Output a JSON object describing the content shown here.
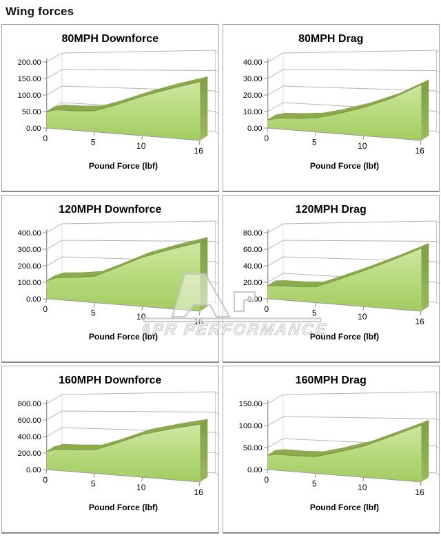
{
  "page": {
    "title": "Wing forces"
  },
  "watermark": {
    "text": "APR PERFORMANCE"
  },
  "style": {
    "area_fill_top": "#cfe8a2",
    "area_fill_mid": "#b7da7d",
    "area_fill_bottom": "#a3cb62",
    "area_ribbon": "#8cab4d",
    "area_edge": "#7d9a42",
    "side_dark": "#7f9e45",
    "side_light": "#99ba59",
    "grid_color": "#b3b3b3",
    "axis_color": "#8c8c8c",
    "border_color": "#a3a3a3"
  },
  "chart_data": [
    {
      "type": "area",
      "title": "80MPH Downforce",
      "xlabel": "Pound Force (lbf)",
      "x": [
        0,
        1,
        3,
        5,
        7,
        10,
        13,
        16
      ],
      "values": [
        50,
        57,
        57,
        60,
        77,
        105,
        127,
        145
      ],
      "ymax": 200,
      "ylim": [
        0,
        200
      ],
      "y_ticks": [
        0,
        50,
        100,
        150,
        200
      ],
      "y_tick_labels": [
        "0.00",
        "50.00",
        "100.00",
        "150.00",
        "200.00"
      ],
      "x_ticks": [
        0,
        5,
        10,
        16
      ],
      "x_tick_labels": [
        "0",
        "5",
        "10",
        "16"
      ]
    },
    {
      "type": "area",
      "title": "80MPH Drag",
      "xlabel": "Pound Force (lbf)",
      "x": [
        0,
        1,
        3,
        5,
        7,
        10,
        13,
        16
      ],
      "values": [
        5,
        6.5,
        7,
        8,
        10.5,
        15,
        20.5,
        27.5
      ],
      "ymax": 40,
      "ylim": [
        0,
        40
      ],
      "y_ticks": [
        0,
        10,
        20,
        30,
        40
      ],
      "y_tick_labels": [
        "0.00",
        "10.00",
        "20.00",
        "30.00",
        "40.00"
      ],
      "x_ticks": [
        0,
        5,
        10,
        16
      ],
      "x_tick_labels": [
        "0",
        "5",
        "10",
        "16"
      ]
    },
    {
      "type": "area",
      "title": "120MPH Downforce",
      "xlabel": "Pound Force (lbf)",
      "x": [
        0,
        1,
        3,
        5,
        7,
        10,
        13,
        16
      ],
      "values": [
        110,
        132,
        138,
        150,
        195,
        262,
        305,
        340
      ],
      "ymax": 400,
      "ylim": [
        0,
        400
      ],
      "y_ticks": [
        0,
        100,
        200,
        300,
        400
      ],
      "y_tick_labels": [
        "0.00",
        "100.00",
        "200.00",
        "300.00",
        "400.00"
      ],
      "x_ticks": [
        0,
        5,
        10,
        16
      ],
      "x_tick_labels": [
        "0",
        "5",
        "10",
        "16"
      ]
    },
    {
      "type": "area",
      "title": "120MPH Drag",
      "xlabel": "Pound Force (lbf)",
      "x": [
        0,
        1,
        3,
        5,
        7,
        10,
        13,
        16
      ],
      "values": [
        16,
        17,
        17,
        18,
        26,
        38,
        50,
        62
      ],
      "ymax": 80,
      "ylim": [
        0,
        80
      ],
      "y_ticks": [
        0,
        20,
        40,
        60,
        80
      ],
      "y_tick_labels": [
        "0.00",
        "20.00",
        "40.00",
        "60.00",
        "80.00"
      ],
      "x_ticks": [
        0,
        5,
        10,
        16
      ],
      "x_tick_labels": [
        "0",
        "5",
        "10",
        "16"
      ]
    },
    {
      "type": "area",
      "title": "160MPH Downforce",
      "xlabel": "Pound Force (lbf)",
      "x": [
        0,
        1,
        3,
        5,
        7,
        10,
        13,
        16
      ],
      "values": [
        220,
        252,
        258,
        268,
        340,
        455,
        520,
        570
      ],
      "ymax": 800,
      "ylim": [
        0,
        800
      ],
      "y_ticks": [
        0,
        200,
        400,
        600,
        800
      ],
      "y_tick_labels": [
        "0.00",
        "200.00",
        "400.00",
        "600.00",
        "800.00"
      ],
      "x_ticks": [
        0,
        5,
        10,
        16
      ],
      "x_tick_labels": [
        "0",
        "5",
        "10",
        "16"
      ]
    },
    {
      "type": "area",
      "title": "160MPH Drag",
      "xlabel": "Pound Force (lbf)",
      "x": [
        0,
        1,
        3,
        5,
        7,
        10,
        13,
        16
      ],
      "values": [
        33,
        36,
        35,
        36,
        46,
        62,
        84,
        105
      ],
      "ymax": 150,
      "ylim": [
        0,
        150
      ],
      "y_ticks": [
        0,
        50,
        100,
        150
      ],
      "y_tick_labels": [
        "0.00",
        "50.00",
        "100.00",
        "150.00"
      ],
      "x_ticks": [
        0,
        5,
        10,
        16
      ],
      "x_tick_labels": [
        "0",
        "5",
        "10",
        "16"
      ]
    }
  ]
}
